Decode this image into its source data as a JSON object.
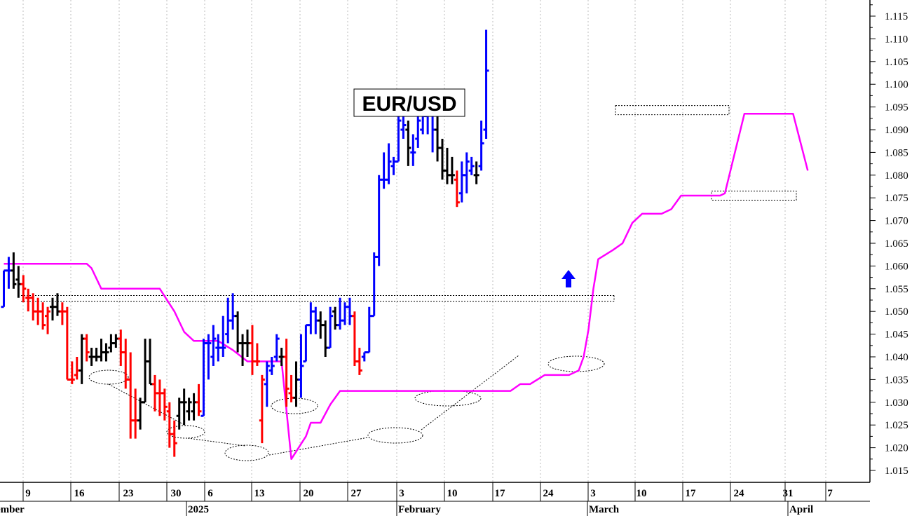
{
  "chart_data": {
    "type": "ohlc",
    "title": "EUR/USD",
    "y_axis": {
      "position": "right",
      "min": 1.012,
      "max": 1.117,
      "tick_labels": [
        "1.015",
        "1.020",
        "1.025",
        "1.030",
        "1.035",
        "1.040",
        "1.045",
        "1.050",
        "1.055",
        "1.060",
        "1.065",
        "1.070",
        "1.075",
        "1.080",
        "1.085",
        "1.090",
        "1.095",
        "1.100",
        "1.105",
        "1.110",
        "1.115"
      ]
    },
    "x_axis": {
      "tick_labels": [
        "9",
        "16",
        "23",
        "30",
        "6",
        "13",
        "20",
        "27",
        "3",
        "10",
        "17",
        "24",
        "3",
        "10",
        "17",
        "24",
        "31",
        "7"
      ],
      "month_labels": [
        "ember",
        "2025",
        "February",
        "March",
        "April"
      ]
    },
    "grid": "vertical dotted",
    "colors": {
      "down_bar": "#ff0000",
      "up_bar": "#0000ff",
      "neutral_bar": "#000000",
      "stop_line": "#ff00ff"
    },
    "bars": [
      {
        "c": "blue",
        "h": 1.059,
        "l": 1.051,
        "o": 1.051,
        "cl": 1.059
      },
      {
        "c": "blue",
        "h": 1.062,
        "l": 1.055,
        "o": 1.059,
        "cl": 1.059
      },
      {
        "c": "black",
        "h": 1.063,
        "l": 1.055,
        "o": 1.059,
        "cl": 1.056
      },
      {
        "c": "black",
        "h": 1.06,
        "l": 1.053,
        "o": 1.057,
        "cl": 1.056
      },
      {
        "c": "red",
        "h": 1.058,
        "l": 1.052,
        "o": 1.056,
        "cl": 1.055
      },
      {
        "c": "red",
        "h": 1.055,
        "l": 1.05,
        "o": 1.053,
        "cl": 1.053
      },
      {
        "c": "red",
        "h": 1.054,
        "l": 1.048,
        "o": 1.053,
        "cl": 1.05
      },
      {
        "c": "red",
        "h": 1.053,
        "l": 1.047,
        "o": 1.05,
        "cl": 1.05
      },
      {
        "c": "red",
        "h": 1.052,
        "l": 1.046,
        "o": 1.05,
        "cl": 1.047
      },
      {
        "c": "red",
        "h": 1.051,
        "l": 1.045,
        "o": 1.049,
        "cl": 1.05
      },
      {
        "c": "black",
        "h": 1.053,
        "l": 1.048,
        "o": 1.051,
        "cl": 1.051
      },
      {
        "c": "black",
        "h": 1.054,
        "l": 1.049,
        "o": 1.051,
        "cl": 1.05
      },
      {
        "c": "red",
        "h": 1.052,
        "l": 1.047,
        "o": 1.05,
        "cl": 1.05
      },
      {
        "c": "red",
        "h": 1.051,
        "l": 1.035,
        "o": 1.05,
        "cl": 1.035
      },
      {
        "c": "red",
        "h": 1.039,
        "l": 1.034,
        "o": 1.035,
        "cl": 1.035
      },
      {
        "c": "red",
        "h": 1.04,
        "l": 1.035,
        "o": 1.036,
        "cl": 1.037
      },
      {
        "c": "black",
        "h": 1.045,
        "l": 1.034,
        "o": 1.037,
        "cl": 1.044
      },
      {
        "c": "red",
        "h": 1.045,
        "l": 1.039,
        "o": 1.044,
        "cl": 1.041
      },
      {
        "c": "black",
        "h": 1.042,
        "l": 1.038,
        "o": 1.04,
        "cl": 1.04
      },
      {
        "c": "black",
        "h": 1.042,
        "l": 1.039,
        "o": 1.04,
        "cl": 1.04
      },
      {
        "c": "black",
        "h": 1.044,
        "l": 1.039,
        "o": 1.04,
        "cl": 1.041
      },
      {
        "c": "black",
        "h": 1.043,
        "l": 1.039,
        "o": 1.041,
        "cl": 1.041
      },
      {
        "c": "black",
        "h": 1.045,
        "l": 1.041,
        "o": 1.042,
        "cl": 1.043
      },
      {
        "c": "black",
        "h": 1.045,
        "l": 1.042,
        "o": 1.043,
        "cl": 1.044
      },
      {
        "c": "red",
        "h": 1.046,
        "l": 1.038,
        "o": 1.044,
        "cl": 1.041
      },
      {
        "c": "red",
        "h": 1.044,
        "l": 1.033,
        "o": 1.041,
        "cl": 1.035
      },
      {
        "c": "red",
        "h": 1.041,
        "l": 1.022,
        "o": 1.035,
        "cl": 1.026
      },
      {
        "c": "red",
        "h": 1.033,
        "l": 1.022,
        "o": 1.026,
        "cl": 1.026
      },
      {
        "c": "black",
        "h": 1.031,
        "l": 1.024,
        "o": 1.026,
        "cl": 1.03
      },
      {
        "c": "black",
        "h": 1.044,
        "l": 1.03,
        "o": 1.03,
        "cl": 1.039
      },
      {
        "c": "black",
        "h": 1.044,
        "l": 1.034,
        "o": 1.039,
        "cl": 1.034
      },
      {
        "c": "red",
        "h": 1.036,
        "l": 1.028,
        "o": 1.034,
        "cl": 1.032
      },
      {
        "c": "red",
        "h": 1.035,
        "l": 1.027,
        "o": 1.032,
        "cl": 1.032
      },
      {
        "c": "red",
        "h": 1.033,
        "l": 1.026,
        "o": 1.032,
        "cl": 1.029
      },
      {
        "c": "red",
        "h": 1.03,
        "l": 1.02,
        "o": 1.028,
        "cl": 1.023
      },
      {
        "c": "red",
        "h": 1.026,
        "l": 1.018,
        "o": 1.023,
        "cl": 1.021
      },
      {
        "c": "black",
        "h": 1.031,
        "l": 1.024,
        "o": 1.027,
        "cl": 1.03
      },
      {
        "c": "black",
        "h": 1.033,
        "l": 1.025,
        "o": 1.03,
        "cl": 1.03
      },
      {
        "c": "black",
        "h": 1.031,
        "l": 1.026,
        "o": 1.028,
        "cl": 1.03
      },
      {
        "c": "black",
        "h": 1.032,
        "l": 1.026,
        "o": 1.028,
        "cl": 1.03
      },
      {
        "c": "red",
        "h": 1.034,
        "l": 1.027,
        "o": 1.03,
        "cl": 1.028
      },
      {
        "c": "blue",
        "h": 1.044,
        "l": 1.027,
        "o": 1.027,
        "cl": 1.043
      },
      {
        "c": "blue",
        "h": 1.045,
        "l": 1.035,
        "o": 1.043,
        "cl": 1.043
      },
      {
        "c": "blue",
        "h": 1.047,
        "l": 1.038,
        "o": 1.04,
        "cl": 1.044
      },
      {
        "c": "blue",
        "h": 1.045,
        "l": 1.039,
        "o": 1.042,
        "cl": 1.042
      },
      {
        "c": "blue",
        "h": 1.049,
        "l": 1.04,
        "o": 1.042,
        "cl": 1.042
      },
      {
        "c": "blue",
        "h": 1.053,
        "l": 1.043,
        "o": 1.045,
        "cl": 1.048
      },
      {
        "c": "blue",
        "h": 1.054,
        "l": 1.046,
        "o": 1.048,
        "cl": 1.049
      },
      {
        "c": "black",
        "h": 1.05,
        "l": 1.041,
        "o": 1.049,
        "cl": 1.043
      },
      {
        "c": "black",
        "h": 1.045,
        "l": 1.038,
        "o": 1.043,
        "cl": 1.043
      },
      {
        "c": "black",
        "h": 1.046,
        "l": 1.04,
        "o": 1.043,
        "cl": 1.043
      },
      {
        "c": "red",
        "h": 1.047,
        "l": 1.036,
        "o": 1.043,
        "cl": 1.039
      },
      {
        "c": "red",
        "h": 1.043,
        "l": 1.038,
        "o": 1.039,
        "cl": 1.039
      },
      {
        "c": "red",
        "h": 1.036,
        "l": 1.021,
        "o": 1.026,
        "cl": 1.035
      },
      {
        "c": "blue",
        "h": 1.039,
        "l": 1.029,
        "o": 1.034,
        "cl": 1.038
      },
      {
        "c": "blue",
        "h": 1.04,
        "l": 1.036,
        "o": 1.037,
        "cl": 1.038
      },
      {
        "c": "blue",
        "h": 1.045,
        "l": 1.039,
        "o": 1.04,
        "cl": 1.044
      },
      {
        "c": "black",
        "h": 1.042,
        "l": 1.038,
        "o": 1.04,
        "cl": 1.04
      },
      {
        "c": "red",
        "h": 1.044,
        "l": 1.029,
        "o": 1.04,
        "cl": 1.033
      },
      {
        "c": "red",
        "h": 1.036,
        "l": 1.03,
        "o": 1.032,
        "cl": 1.031
      },
      {
        "c": "black",
        "h": 1.039,
        "l": 1.029,
        "o": 1.031,
        "cl": 1.035
      },
      {
        "c": "blue",
        "h": 1.045,
        "l": 1.031,
        "o": 1.035,
        "cl": 1.038
      },
      {
        "c": "blue",
        "h": 1.047,
        "l": 1.039,
        "o": 1.039,
        "cl": 1.047
      },
      {
        "c": "blue",
        "h": 1.052,
        "l": 1.045,
        "o": 1.047,
        "cl": 1.05
      },
      {
        "c": "blue",
        "h": 1.051,
        "l": 1.045,
        "o": 1.05,
        "cl": 1.048
      },
      {
        "c": "black",
        "h": 1.05,
        "l": 1.044,
        "o": 1.048,
        "cl": 1.047
      },
      {
        "c": "black",
        "h": 1.048,
        "l": 1.04,
        "o": 1.047,
        "cl": 1.042
      },
      {
        "c": "blue",
        "h": 1.051,
        "l": 1.042,
        "o": 1.042,
        "cl": 1.049
      },
      {
        "c": "black",
        "h": 1.051,
        "l": 1.046,
        "o": 1.05,
        "cl": 1.047
      },
      {
        "c": "blue",
        "h": 1.053,
        "l": 1.046,
        "o": 1.047,
        "cl": 1.048
      },
      {
        "c": "blue",
        "h": 1.052,
        "l": 1.047,
        "o": 1.048,
        "cl": 1.051
      },
      {
        "c": "blue",
        "h": 1.053,
        "l": 1.047,
        "o": 1.051,
        "cl": 1.049
      },
      {
        "c": "red",
        "h": 1.05,
        "l": 1.038,
        "o": 1.049,
        "cl": 1.039
      },
      {
        "c": "red",
        "h": 1.042,
        "l": 1.036,
        "o": 1.039,
        "cl": 1.037
      },
      {
        "c": "blue",
        "h": 1.041,
        "l": 1.039,
        "o": 1.04,
        "cl": 1.041
      },
      {
        "c": "blue",
        "h": 1.051,
        "l": 1.041,
        "o": 1.041,
        "cl": 1.049
      },
      {
        "c": "blue",
        "h": 1.063,
        "l": 1.049,
        "o": 1.049,
        "cl": 1.062
      },
      {
        "c": "blue",
        "h": 1.08,
        "l": 1.06,
        "o": 1.062,
        "cl": 1.079
      },
      {
        "c": "blue",
        "h": 1.085,
        "l": 1.077,
        "o": 1.079,
        "cl": 1.079
      },
      {
        "c": "blue",
        "h": 1.087,
        "l": 1.078,
        "o": 1.079,
        "cl": 1.083
      },
      {
        "c": "blue",
        "h": 1.084,
        "l": 1.08,
        "o": 1.082,
        "cl": 1.083
      },
      {
        "c": "blue",
        "h": 1.095,
        "l": 1.083,
        "o": 1.083,
        "cl": 1.092
      },
      {
        "c": "blue",
        "h": 1.093,
        "l": 1.088,
        "o": 1.09,
        "cl": 1.091
      },
      {
        "c": "black",
        "h": 1.092,
        "l": 1.082,
        "o": 1.09,
        "cl": 1.086
      },
      {
        "c": "blue",
        "h": 1.089,
        "l": 1.082,
        "o": 1.085,
        "cl": 1.085
      },
      {
        "c": "blue",
        "h": 1.093,
        "l": 1.086,
        "o": 1.088,
        "cl": 1.092
      },
      {
        "c": "blue",
        "h": 1.093,
        "l": 1.089,
        "o": 1.09,
        "cl": 1.093
      },
      {
        "c": "blue",
        "h": 1.096,
        "l": 1.089,
        "o": 1.093,
        "cl": 1.094
      },
      {
        "c": "blue",
        "h": 1.096,
        "l": 1.085,
        "o": 1.094,
        "cl": 1.09
      },
      {
        "c": "black",
        "h": 1.093,
        "l": 1.083,
        "o": 1.09,
        "cl": 1.086
      },
      {
        "c": "black",
        "h": 1.088,
        "l": 1.079,
        "o": 1.086,
        "cl": 1.081
      },
      {
        "c": "black",
        "h": 1.086,
        "l": 1.078,
        "o": 1.081,
        "cl": 1.08
      },
      {
        "c": "black",
        "h": 1.084,
        "l": 1.078,
        "o": 1.08,
        "cl": 1.08
      },
      {
        "c": "red",
        "h": 1.081,
        "l": 1.073,
        "o": 1.079,
        "cl": 1.074
      },
      {
        "c": "blue",
        "h": 1.083,
        "l": 1.074,
        "o": 1.076,
        "cl": 1.08
      },
      {
        "c": "blue",
        "h": 1.085,
        "l": 1.076,
        "o": 1.08,
        "cl": 1.083
      },
      {
        "c": "blue",
        "h": 1.084,
        "l": 1.08,
        "o": 1.081,
        "cl": 1.082
      },
      {
        "c": "black",
        "h": 1.083,
        "l": 1.078,
        "o": 1.08,
        "cl": 1.08
      },
      {
        "c": "blue",
        "h": 1.092,
        "l": 1.081,
        "o": 1.082,
        "cl": 1.087
      },
      {
        "c": "blue",
        "h": 1.112,
        "l": 1.088,
        "o": 1.09,
        "cl": 1.103
      }
    ],
    "stop_line": [
      [
        0,
        1.0605
      ],
      [
        17,
        1.0605
      ],
      [
        18,
        1.0595
      ],
      [
        20,
        1.055
      ],
      [
        32,
        1.055
      ],
      [
        35,
        1.05
      ],
      [
        37,
        1.0455
      ],
      [
        39,
        1.0435
      ],
      [
        44,
        1.0435
      ],
      [
        47,
        1.0415
      ],
      [
        50,
        1.039
      ],
      [
        57,
        1.039
      ],
      [
        59,
        1.0175
      ],
      [
        62,
        1.0225
      ],
      [
        63,
        1.0255
      ],
      [
        65,
        1.0255
      ],
      [
        67,
        1.0295
      ],
      [
        69,
        1.0325
      ],
      [
        104,
        1.0325
      ],
      [
        106,
        1.034
      ],
      [
        108,
        1.034
      ],
      [
        111,
        1.036
      ],
      [
        116,
        1.036
      ],
      [
        118,
        1.037
      ],
      [
        119,
        1.04
      ],
      [
        120,
        1.046
      ],
      [
        121,
        1.055
      ],
      [
        122,
        1.0615
      ],
      [
        125,
        1.0635
      ],
      [
        127,
        1.065
      ],
      [
        129,
        1.0695
      ],
      [
        131,
        1.0715
      ],
      [
        135,
        1.0715
      ],
      [
        137,
        1.0725
      ],
      [
        139,
        1.0755
      ],
      [
        147,
        1.0755
      ],
      [
        148,
        1.076
      ],
      [
        152,
        1.0935
      ],
      [
        162,
        1.0935
      ],
      [
        165,
        1.081
      ]
    ]
  }
}
